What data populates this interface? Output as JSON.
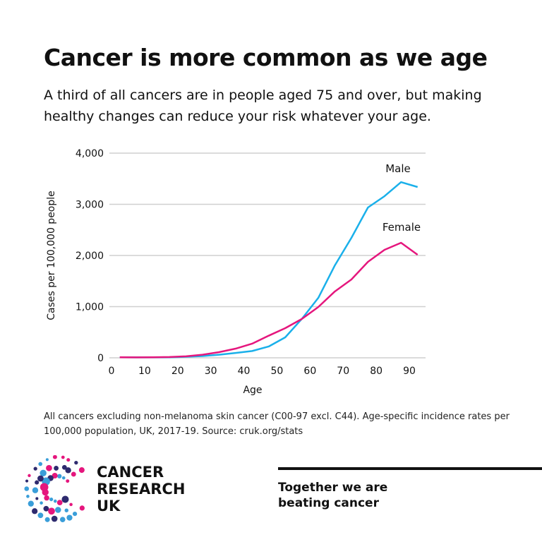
{
  "header": {
    "title": "Cancer is more common as we age",
    "subtitle": "A third of all cancers are in people aged 75 and over, but making healthy changes can reduce your risk whatever your age."
  },
  "chart_data": {
    "type": "line",
    "xlabel": "Age",
    "ylabel": "Cases per 100,000 people",
    "xlim": [
      0,
      95
    ],
    "ylim": [
      0,
      4000
    ],
    "x_ticks": [
      0,
      10,
      20,
      30,
      40,
      50,
      60,
      70,
      80,
      90
    ],
    "y_ticks": [
      0,
      1000,
      2000,
      3000,
      4000
    ],
    "y_tick_labels": [
      "0",
      "1,000",
      "2,000",
      "3,000",
      "4,000"
    ],
    "grid": "horizontal",
    "x": [
      2.5,
      7.5,
      12.5,
      17.5,
      22.5,
      27.5,
      32.5,
      37.5,
      42.5,
      47.5,
      52.5,
      57.5,
      62.5,
      67.5,
      72.5,
      77.5,
      82.5,
      87.5,
      92.5
    ],
    "series": [
      {
        "name": "Male",
        "color": "#1ab0ea",
        "values": [
          10,
          8,
          8,
          10,
          20,
          35,
          60,
          95,
          133,
          221,
          400,
          759,
          1172,
          1807,
          2345,
          2938,
          3159,
          3434,
          3338
        ]
      },
      {
        "name": "Female",
        "color": "#e5167d",
        "values": [
          10,
          8,
          10,
          15,
          30,
          60,
          110,
          179,
          276,
          432,
          579,
          759,
          993,
          1297,
          1531,
          1876,
          2110,
          2248,
          2014
        ]
      }
    ]
  },
  "footnote": "All cancers excluding non-melanoma skin cancer (C00-97 excl. C44). Age-specific incidence rates per 100,000 population, UK, 2017-19. Source: cruk.org/stats",
  "logo": {
    "lines": [
      "CANCER",
      "RESEARCH",
      "UK"
    ],
    "colors": [
      "#e5167d",
      "#2e2a6e",
      "#3a9ed9"
    ]
  },
  "tagline": {
    "lines": [
      "Together we are",
      "beating cancer"
    ]
  }
}
